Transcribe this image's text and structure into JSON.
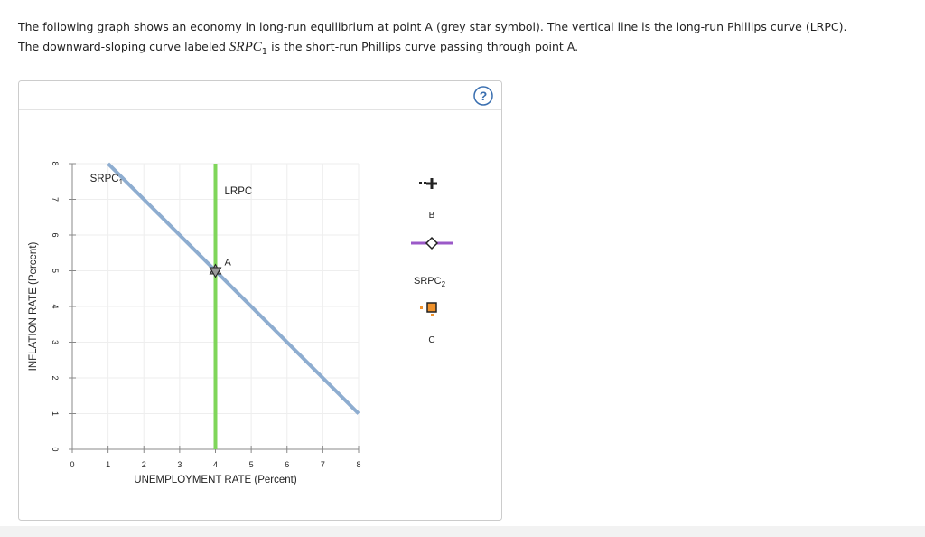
{
  "instructions": {
    "line1": "The following graph shows an economy in long-run equilibrium at point A (grey star symbol). The vertical line is the long-run Phillips curve (LRPC).",
    "line2_start": "The downward-sloping curve labeled",
    "line2_symbol": "SRPC",
    "line2_subscript": "1",
    "line2_end": "is the short-run Phillips curve passing through point A."
  },
  "help": "?",
  "chart_data": {
    "type": "line",
    "xlabel": "UNEMPLOYMENT RATE (Percent)",
    "ylabel": "INFLATION RATE (Percent)",
    "xlim": [
      0,
      8
    ],
    "ylim": [
      0,
      8
    ],
    "xticks": [
      0,
      1,
      2,
      3,
      4,
      5,
      6,
      7,
      8
    ],
    "yticks": [
      0,
      1,
      2,
      3,
      4,
      5,
      6,
      7,
      8
    ],
    "grid": true,
    "series": [
      {
        "name": "SRPC",
        "subscript": "1",
        "color": "#8eadd0",
        "x": [
          1,
          8
        ],
        "values": [
          8,
          1
        ]
      },
      {
        "name": "LRPC",
        "color": "#7fd65a",
        "x": [
          4,
          4
        ],
        "values": [
          0,
          8
        ]
      }
    ],
    "points": [
      {
        "label": "A",
        "x": 4,
        "y": 5,
        "color": "#9a9a9a"
      }
    ]
  },
  "palette": {
    "items": [
      {
        "label": "B",
        "color": "#222222"
      },
      {
        "label": "SRPC",
        "subscript": "2",
        "color": "#9b59c8"
      },
      {
        "label": "C",
        "color": "#f0922b"
      }
    ]
  }
}
